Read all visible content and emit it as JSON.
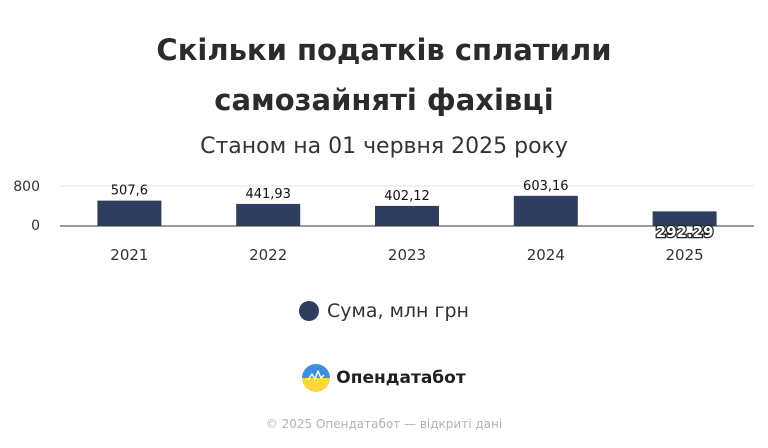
{
  "chart_data": {
    "type": "bar",
    "title_lines": [
      "Скільки податків сплатили",
      "самозайняті фахівці"
    ],
    "subtitle": "Станом на 01 червня 2025 року",
    "categories": [
      "2021",
      "2022",
      "2023",
      "2024",
      "2025"
    ],
    "series": [
      {
        "name": "Сума, млн грн",
        "color": "#2f3e5f",
        "values": [
          507.6,
          441.93,
          402.12,
          603.16,
          292.29
        ],
        "labels": [
          "507,6",
          "441,93",
          "402,12",
          "603,16",
          "292.29"
        ]
      }
    ],
    "y_ticks": [
      "0",
      "800"
    ],
    "ylim": [
      0,
      800
    ],
    "grid": true,
    "legend": "bottom-center"
  },
  "brand": {
    "name": "Опендатабот"
  },
  "footer": {
    "text": "© 2025 Опендатабот — відкриті дані"
  }
}
